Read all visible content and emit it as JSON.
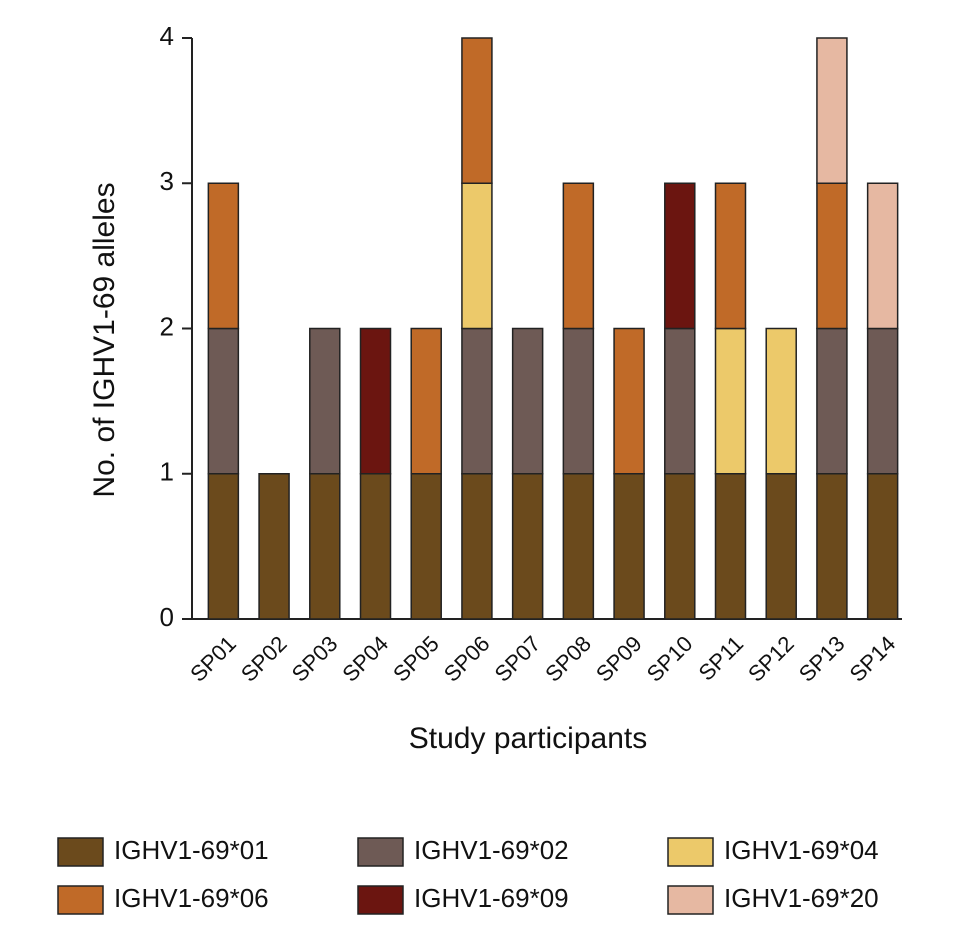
{
  "chart_data": {
    "type": "stacked_bar",
    "x_label": "Study participants",
    "y_label": "No. of IGHV1-69 alleles",
    "categories": [
      "SP01",
      "SP02",
      "SP03",
      "SP04",
      "SP05",
      "SP06",
      "SP07",
      "SP08",
      "SP09",
      "SP10",
      "SP11",
      "SP12",
      "SP13",
      "SP14"
    ],
    "series": [
      {
        "name": "IGHV1-69*01",
        "color": "#6b4a1c",
        "values": [
          1,
          1,
          1,
          1,
          1,
          1,
          1,
          1,
          1,
          1,
          1,
          1,
          1,
          1
        ]
      },
      {
        "name": "IGHV1-69*02",
        "color": "#6e5a55",
        "values": [
          1,
          0,
          1,
          0,
          0,
          1,
          1,
          1,
          0,
          1,
          0,
          0,
          1,
          1
        ]
      },
      {
        "name": "IGHV1-69*04",
        "color": "#ecc96a",
        "values": [
          0,
          0,
          0,
          0,
          0,
          1,
          0,
          0,
          0,
          0,
          1,
          1,
          0,
          0
        ]
      },
      {
        "name": "IGHV1-69*06",
        "color": "#c06a28",
        "values": [
          1,
          0,
          0,
          0,
          1,
          1,
          0,
          1,
          1,
          0,
          1,
          0,
          1,
          0
        ]
      },
      {
        "name": "IGHV1-69*09",
        "color": "#6b1510",
        "values": [
          0,
          0,
          0,
          1,
          0,
          0,
          0,
          0,
          0,
          1,
          0,
          0,
          0,
          0
        ]
      },
      {
        "name": "IGHV1-69*20",
        "color": "#e6b8a2",
        "values": [
          0,
          0,
          0,
          0,
          0,
          0,
          0,
          0,
          0,
          0,
          0,
          0,
          1,
          1
        ]
      }
    ],
    "ylim": [
      0,
      4
    ],
    "yticks": [
      0,
      1,
      2,
      3,
      4
    ]
  }
}
